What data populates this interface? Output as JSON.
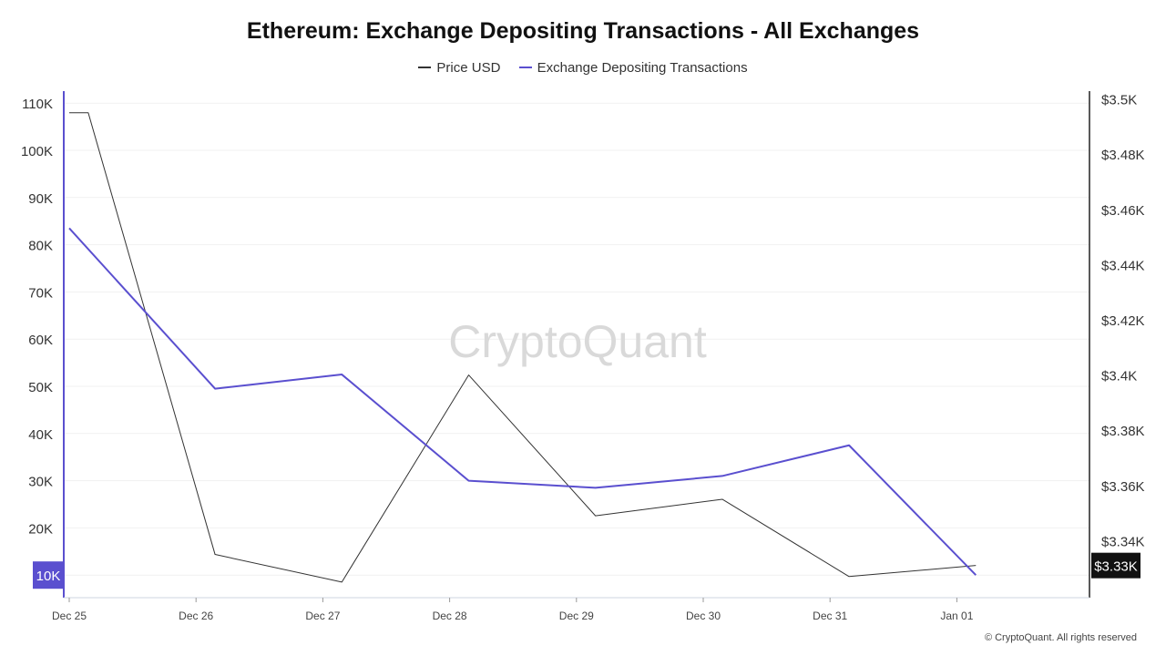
{
  "chart_data": {
    "type": "line",
    "title": "Ethereum: Exchange Depositing Transactions - All Exchanges",
    "x": [
      "Dec 25",
      "Dec 25",
      "Dec 26",
      "Dec 27",
      "Dec 28",
      "Dec 29",
      "Dec 30",
      "Dec 31",
      "Jan 01"
    ],
    "x_ticks": [
      "Dec 25",
      "Dec 26",
      "Dec 27",
      "Dec 28",
      "Dec 29",
      "Dec 30",
      "Dec 31",
      "Jan 01"
    ],
    "series": [
      {
        "name": "Price USD",
        "axis": "right",
        "color": "#333333",
        "x": [
          0,
          0.15,
          1.15,
          2.15,
          3.15,
          4.15,
          5.15,
          6.15,
          7.15
        ],
        "values": [
          3495,
          3495,
          3335,
          3325,
          3400,
          3349,
          3355,
          3327,
          3331
        ]
      },
      {
        "name": "Exchange Depositing Transactions",
        "axis": "left",
        "color": "#5a4fcf",
        "x": [
          0,
          1.15,
          2.15,
          3.15,
          4.15,
          5.15,
          6.15,
          7.15
        ],
        "values": [
          83500,
          49500,
          52500,
          30000,
          28500,
          31000,
          37500,
          10000
        ]
      }
    ],
    "y_left": {
      "ylim": [
        5000,
        110000
      ],
      "ticks": [
        10000,
        20000,
        30000,
        40000,
        50000,
        60000,
        70000,
        80000,
        90000,
        100000,
        110000
      ],
      "tick_labels": [
        "10K",
        "20K",
        "30K",
        "40K",
        "50K",
        "60K",
        "70K",
        "80K",
        "90K",
        "100K",
        "110K"
      ],
      "current_label": "10K",
      "current_value": 10000
    },
    "y_right": {
      "ylim": [
        3320,
        3500
      ],
      "ticks": [
        3340,
        3360,
        3380,
        3400,
        3420,
        3440,
        3460,
        3480,
        3500
      ],
      "tick_labels": [
        "$3.34K",
        "$3.36K",
        "$3.38K",
        "$3.4K",
        "$3.42K",
        "$3.44K",
        "$3.46K",
        "$3.48K",
        "$3.5K"
      ],
      "current_label": "$3.33K",
      "current_value": 3331
    },
    "grid": true,
    "legend_position": "top-center",
    "watermark": "CryptoQuant"
  },
  "footer": "© CryptoQuant. All rights reserved"
}
